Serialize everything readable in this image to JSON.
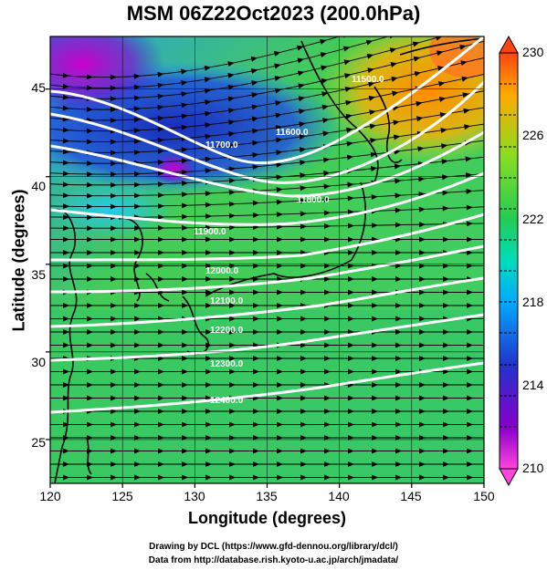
{
  "title": "MSM 06Z22Oct2023 (200.0hPa)",
  "x_axis": {
    "label": "Longitude (degrees)",
    "ticks": [
      "120",
      "125",
      "130",
      "135",
      "140",
      "145",
      "150"
    ]
  },
  "y_axis": {
    "label": "Latitude  (degrees)",
    "ticks": [
      "25",
      "30",
      "35",
      "40",
      "45"
    ]
  },
  "colorbar": {
    "ticks": [
      "210",
      "214",
      "218",
      "222",
      "226",
      "230"
    ]
  },
  "contours": [
    {
      "label": "11500.0",
      "color": "#ffffff"
    },
    {
      "label": "11600.0",
      "color": "#ffffff"
    },
    {
      "label": "11700.0",
      "color": "#ffffff"
    },
    {
      "label": "11800.0",
      "color": "#ffffff"
    },
    {
      "label": "11900.0",
      "color": "#ffffff"
    },
    {
      "label": "12000.0",
      "color": "#ffffff"
    },
    {
      "label": "12100.0",
      "color": "#ffffff"
    },
    {
      "label": "12200.0",
      "color": "#ffffff"
    },
    {
      "label": "12300.0",
      "color": "#ffffff"
    },
    {
      "label": "12400.0",
      "color": "#ffffff"
    }
  ],
  "credits": [
    "Drawing by DCL (https://www.gfd-dennou.org/library/dcl/)",
    "Data from http://database.rish.kyoto-u.ac.jp/arch/jmadata/"
  ],
  "colors": {
    "cold": "#cc00cc",
    "cool": "#2233cc",
    "mid": "#22cc55",
    "warm": "#ff8800"
  },
  "chart_data": {
    "type": "heatmap",
    "variable": "temperature",
    "xlim": [
      120,
      150
    ],
    "ylim": [
      22.5,
      48
    ],
    "clim": [
      210,
      230
    ],
    "xticks": [
      120,
      125,
      130,
      135,
      140,
      145,
      150
    ],
    "yticks": [
      25,
      30,
      35,
      40,
      45
    ],
    "contour_levels": [
      11500,
      11600,
      11700,
      11800,
      11900,
      12000,
      12100,
      12200,
      12300,
      12400
    ]
  }
}
